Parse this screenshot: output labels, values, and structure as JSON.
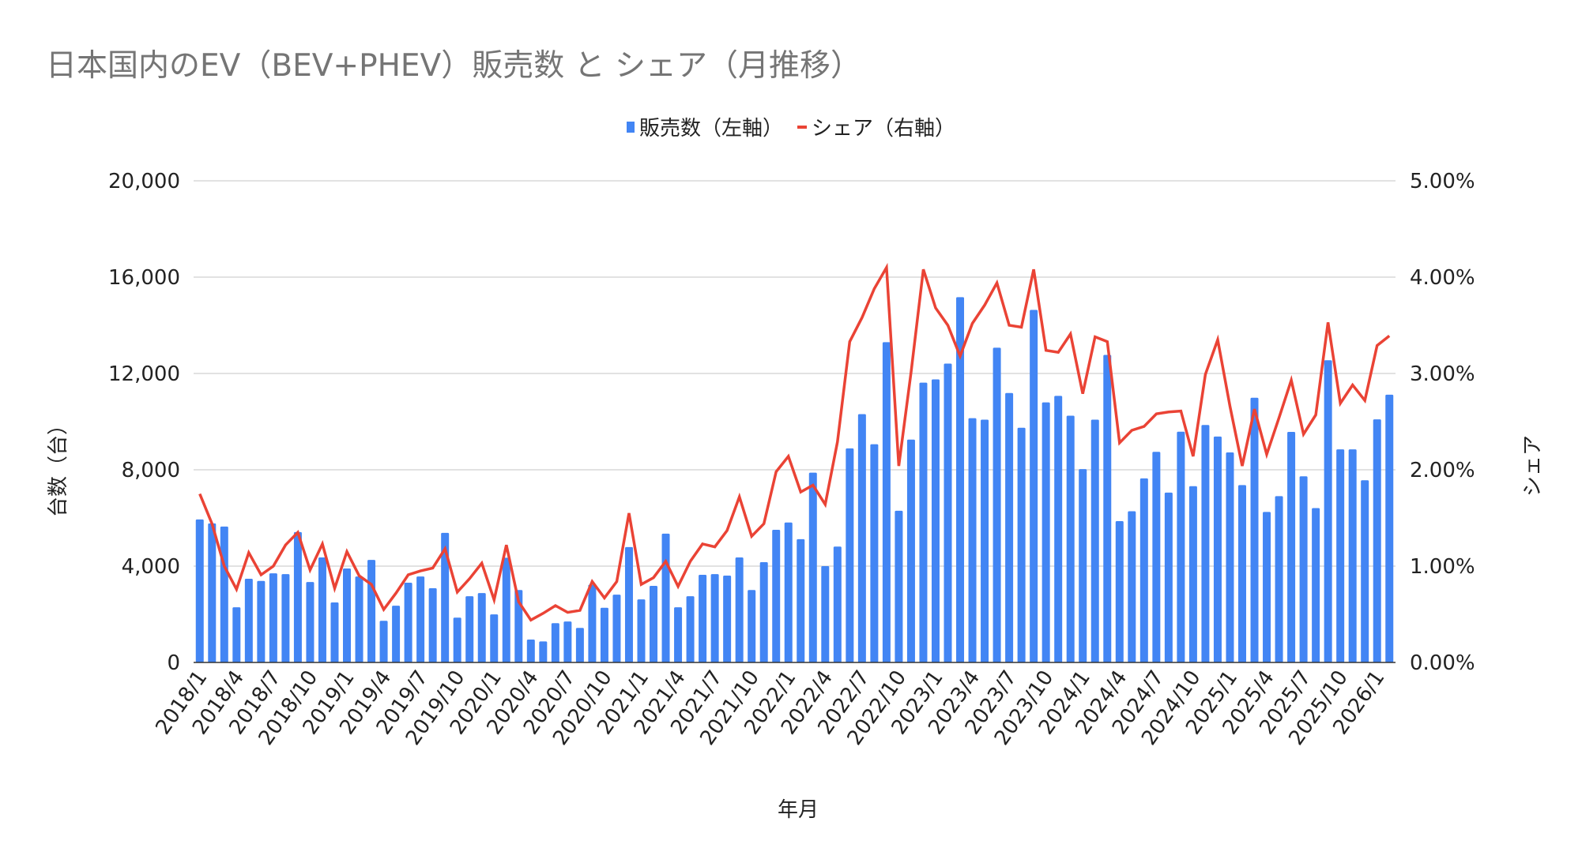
{
  "chart_data": {
    "type": "bar+line",
    "title": "日本国内のEV（BEV+PHEV）販売数 と シェア（月推移）",
    "xlabel": "年月",
    "ylabel_left": "台数（台）",
    "ylabel_right": "シェア",
    "legend_position": "top",
    "grid": true,
    "ylim_left": [
      0,
      20000
    ],
    "ylim_right": [
      0,
      5
    ],
    "left_ticks": [
      "0",
      "4,000",
      "8,000",
      "12,000",
      "16,000",
      "20,000"
    ],
    "right_ticks": [
      "0.00%",
      "1.00%",
      "2.00%",
      "3.00%",
      "4.00%",
      "5.00%"
    ],
    "categories": [
      "2018/1",
      "2018/2",
      "2018/3",
      "2018/4",
      "2018/5",
      "2018/6",
      "2018/7",
      "2018/8",
      "2018/9",
      "2018/10",
      "2018/11",
      "2018/12",
      "2019/1",
      "2019/2",
      "2019/3",
      "2019/4",
      "2019/5",
      "2019/6",
      "2019/7",
      "2019/8",
      "2019/9",
      "2019/10",
      "2019/11",
      "2019/12",
      "2020/1",
      "2020/2",
      "2020/3",
      "2020/4",
      "2020/5",
      "2020/6",
      "2020/7",
      "2020/8",
      "2020/9",
      "2020/10",
      "2020/11",
      "2020/12",
      "2021/1",
      "2021/2",
      "2021/3",
      "2021/4",
      "2021/5",
      "2021/6",
      "2021/7",
      "2021/8",
      "2021/9",
      "2021/10",
      "2021/11",
      "2021/12",
      "2022/1",
      "2022/2",
      "2022/3",
      "2022/4",
      "2022/5",
      "2022/6",
      "2022/7",
      "2022/8",
      "2022/9",
      "2022/10",
      "2022/11",
      "2022/12",
      "2023/1",
      "2023/2",
      "2023/3",
      "2023/4",
      "2023/5",
      "2023/6",
      "2023/7",
      "2023/8",
      "2023/9",
      "2023/10",
      "2023/11",
      "2023/12",
      "2024/1",
      "2024/2",
      "2024/3",
      "2024/4",
      "2024/5",
      "2024/6",
      "2024/7",
      "2024/8",
      "2024/9",
      "2024/10",
      "2024/11",
      "2024/12",
      "2025/1",
      "2025/2",
      "2025/3",
      "2025/4",
      "2025/5",
      "2025/6",
      "2025/7",
      "2025/8",
      "2025/9",
      "2025/10",
      "2025/11",
      "2025/12",
      "2026/1",
      "2026/2"
    ],
    "series": [
      {
        "name": "販売数（左軸）",
        "type": "bar",
        "axis": "left",
        "color": "#4285f4",
        "values": [
          5940,
          5775,
          5645,
          2290,
          3475,
          3385,
          3700,
          3670,
          5415,
          3340,
          4360,
          2490,
          3900,
          3570,
          4260,
          1730,
          2355,
          3310,
          3570,
          3080,
          5380,
          1860,
          2750,
          2880,
          1995,
          4350,
          3010,
          950,
          875,
          1630,
          1700,
          1435,
          3230,
          2270,
          2815,
          4790,
          2620,
          3180,
          5350,
          2290,
          2750,
          3640,
          3670,
          3605,
          4360,
          3010,
          4165,
          5510,
          5810,
          5120,
          7880,
          4000,
          4810,
          8890,
          10310,
          9060,
          13300,
          6300,
          9255,
          11620,
          11755,
          12410,
          15170,
          10145,
          10080,
          13070,
          11190,
          9745,
          14640,
          10800,
          11070,
          10245,
          8030,
          10080,
          12770,
          5870,
          6280,
          7645,
          8745,
          7055,
          9580,
          7320,
          9860,
          9380,
          8720,
          7365,
          10990,
          6250,
          6905,
          9575,
          7730,
          6410,
          12550,
          8850,
          8850,
          7565,
          10095,
          11120
        ]
      },
      {
        "name": "シェア（右軸）",
        "type": "line",
        "axis": "right",
        "unit": "%",
        "color": "#ea4335",
        "values": [
          1.75,
          1.44,
          1.0,
          0.76,
          1.14,
          0.91,
          1.0,
          1.22,
          1.35,
          0.96,
          1.23,
          0.77,
          1.15,
          0.9,
          0.81,
          0.55,
          0.72,
          0.91,
          0.95,
          0.98,
          1.18,
          0.73,
          0.87,
          1.03,
          0.65,
          1.22,
          0.63,
          0.44,
          0.51,
          0.59,
          0.52,
          0.54,
          0.84,
          0.67,
          0.84,
          1.55,
          0.81,
          0.88,
          1.05,
          0.79,
          1.05,
          1.23,
          1.2,
          1.37,
          1.72,
          1.31,
          1.44,
          1.98,
          2.14,
          1.77,
          1.84,
          1.64,
          2.29,
          3.33,
          3.58,
          3.88,
          4.1,
          2.04,
          3.01,
          4.08,
          3.68,
          3.5,
          3.18,
          3.52,
          3.71,
          3.94,
          3.5,
          3.48,
          4.08,
          3.24,
          3.22,
          3.41,
          2.79,
          3.38,
          3.33,
          2.28,
          2.41,
          2.45,
          2.58,
          2.6,
          2.61,
          2.14,
          2.99,
          3.35,
          2.66,
          2.04,
          2.63,
          2.16,
          2.54,
          2.93,
          2.37,
          2.57,
          3.53,
          2.69,
          2.88,
          2.72,
          3.29,
          3.39
        ]
      }
    ],
    "x_tick_every": 3
  }
}
